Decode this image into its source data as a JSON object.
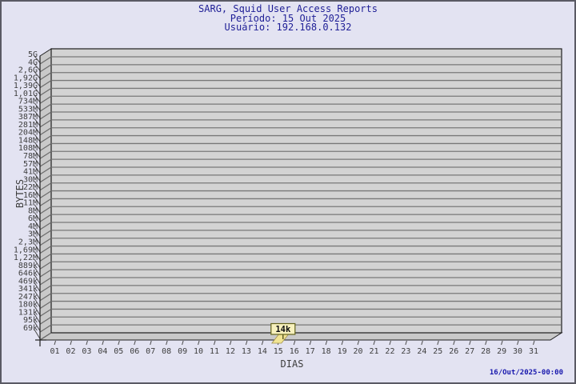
{
  "chart_data": {
    "type": "bar",
    "title": "SARG, Squid User Access Reports",
    "subtitle_period": "Período: 15 Out 2025",
    "subtitle_user": "Usuário: 192.168.0.132",
    "xlabel": "DIAS",
    "ylabel": "BYTES",
    "y_axis": {
      "scale": "log",
      "tick_labels": [
        "5G",
        "4G",
        "2,6G",
        "1,92G",
        "1,39G",
        "1,01G",
        "734M",
        "533M",
        "387M",
        "281M",
        "204M",
        "148M",
        "108M",
        "78M",
        "57M",
        "41M",
        "30M",
        "22M",
        "16M",
        "11M",
        "8M",
        "6M",
        "4M",
        "3M",
        "2,3M",
        "1,69M",
        "1,22M",
        "889k",
        "646k",
        "469k",
        "341k",
        "247k",
        "180k",
        "131k",
        "95k",
        "69k"
      ]
    },
    "x_axis": {
      "tick_labels": [
        "01",
        "02",
        "03",
        "04",
        "05",
        "06",
        "07",
        "08",
        "09",
        "10",
        "11",
        "12",
        "13",
        "14",
        "15",
        "16",
        "17",
        "18",
        "19",
        "20",
        "21",
        "22",
        "23",
        "24",
        "25",
        "26",
        "27",
        "28",
        "29",
        "30",
        "31"
      ]
    },
    "bars": [
      {
        "x": "15",
        "value_label": "14k",
        "value_bytes": 14000
      }
    ],
    "footer_timestamp": "16/Out/2025-00:00",
    "colors": {
      "background": "#e3e3f2",
      "frame_border": "#5a5a64",
      "plot_back_wall": "#d3d3d3",
      "plot_side_wall": "#c9c9c9",
      "gridline": "#787878",
      "plot_outline": "#1f1f1f",
      "title_text": "#1e1e96",
      "tick_text": "#3d3d3d",
      "timestamp_text": "#1717ad",
      "bar_fill": "#f1e493",
      "bar_edge": "#a3924a",
      "value_box_fill": "#f7f1bd",
      "value_box_border": "#63631c",
      "value_text": "#101010"
    }
  }
}
